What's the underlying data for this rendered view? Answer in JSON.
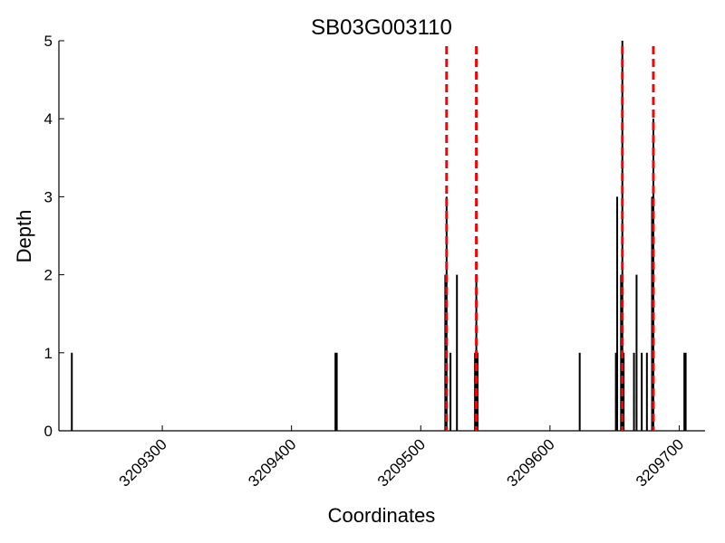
{
  "chart_data": {
    "type": "bar",
    "title": "SB03G003110",
    "xlabel": "Coordinates",
    "ylabel": "Depth",
    "xlim": [
      3209220,
      3209720
    ],
    "ylim": [
      0,
      5
    ],
    "xticks": [
      3209300,
      3209400,
      3209500,
      3209600,
      3209700
    ],
    "yticks": [
      0,
      1,
      2,
      3,
      4,
      5
    ],
    "grid": false,
    "bars": [
      {
        "x": 3209230,
        "y": 1
      },
      {
        "x": 3209434,
        "y": 1
      },
      {
        "x": 3209435,
        "y": 1
      },
      {
        "x": 3209519,
        "y": 2
      },
      {
        "x": 3209520,
        "y": 3
      },
      {
        "x": 3209523,
        "y": 1
      },
      {
        "x": 3209528,
        "y": 2
      },
      {
        "x": 3209542,
        "y": 1
      },
      {
        "x": 3209543,
        "y": 2
      },
      {
        "x": 3209544,
        "y": 1
      },
      {
        "x": 3209623,
        "y": 1
      },
      {
        "x": 3209651,
        "y": 1
      },
      {
        "x": 3209652,
        "y": 3
      },
      {
        "x": 3209655,
        "y": 2
      },
      {
        "x": 3209656,
        "y": 5
      },
      {
        "x": 3209657,
        "y": 1
      },
      {
        "x": 3209665,
        "y": 1
      },
      {
        "x": 3209667,
        "y": 2
      },
      {
        "x": 3209671,
        "y": 1
      },
      {
        "x": 3209675,
        "y": 1
      },
      {
        "x": 3209679,
        "y": 3
      },
      {
        "x": 3209680,
        "y": 4
      },
      {
        "x": 3209704,
        "y": 1
      },
      {
        "x": 3209705,
        "y": 1
      }
    ],
    "vlines": [
      3209520,
      3209543,
      3209656,
      3209680
    ],
    "colors": {
      "bars": "#000000",
      "vlines": "#ff0000",
      "axes": "#000000"
    }
  }
}
